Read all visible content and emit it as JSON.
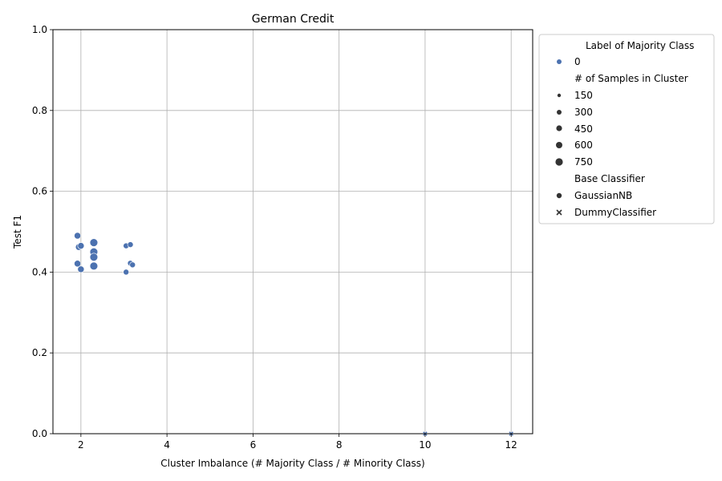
{
  "chart_data": {
    "type": "scatter",
    "title": "German Credit",
    "xlabel": "Cluster Imbalance (# Majority Class / # Minority Class)",
    "ylabel": "Test F1",
    "xlim": [
      1.35,
      12.5
    ],
    "ylim": [
      0,
      1.0
    ],
    "xticks": [
      "2",
      "4",
      "6",
      "8",
      "10",
      "12"
    ],
    "xtick_values": [
      2,
      4,
      6,
      8,
      10,
      12
    ],
    "yticks": [
      "0.0",
      "0.2",
      "0.4",
      "0.6",
      "0.8",
      "1.0"
    ],
    "ytick_values": [
      0,
      0.2,
      0.4,
      0.6,
      0.8,
      1.0
    ],
    "grid": true,
    "legend_placement": "outside-right",
    "color": "#4c72b0",
    "legend": {
      "hue_title": "Label of Majority Class",
      "hue_items": [
        "0"
      ],
      "size_title": "# of Samples in Cluster",
      "size_items": [
        "150",
        "300",
        "450",
        "600",
        "750"
      ],
      "style_title": "Base Classifier",
      "style_items": [
        {
          "label": "GaussianNB",
          "marker": "circle"
        },
        {
          "label": "DummyClassifier",
          "marker": "x"
        }
      ]
    },
    "points": [
      {
        "x": 1.92,
        "y": 0.49,
        "samples": 450,
        "classifier": "GaussianNB"
      },
      {
        "x": 1.95,
        "y": 0.462,
        "samples": 450,
        "classifier": "GaussianNB"
      },
      {
        "x": 2.0,
        "y": 0.465,
        "samples": 450,
        "classifier": "GaussianNB"
      },
      {
        "x": 1.92,
        "y": 0.421,
        "samples": 450,
        "classifier": "GaussianNB"
      },
      {
        "x": 2.0,
        "y": 0.407,
        "samples": 450,
        "classifier": "GaussianNB"
      },
      {
        "x": 2.3,
        "y": 0.473,
        "samples": 750,
        "classifier": "GaussianNB"
      },
      {
        "x": 2.3,
        "y": 0.45,
        "samples": 750,
        "classifier": "GaussianNB"
      },
      {
        "x": 2.3,
        "y": 0.437,
        "samples": 750,
        "classifier": "GaussianNB"
      },
      {
        "x": 2.3,
        "y": 0.415,
        "samples": 750,
        "classifier": "GaussianNB"
      },
      {
        "x": 3.05,
        "y": 0.465,
        "samples": 300,
        "classifier": "GaussianNB"
      },
      {
        "x": 3.15,
        "y": 0.468,
        "samples": 300,
        "classifier": "GaussianNB"
      },
      {
        "x": 3.15,
        "y": 0.422,
        "samples": 300,
        "classifier": "GaussianNB"
      },
      {
        "x": 3.2,
        "y": 0.418,
        "samples": 300,
        "classifier": "GaussianNB"
      },
      {
        "x": 3.05,
        "y": 0.4,
        "samples": 300,
        "classifier": "GaussianNB"
      },
      {
        "x": 10.0,
        "y": 0.0,
        "samples": 150,
        "classifier": "DummyClassifier"
      },
      {
        "x": 12.0,
        "y": 0.0,
        "samples": 150,
        "classifier": "DummyClassifier"
      }
    ]
  }
}
